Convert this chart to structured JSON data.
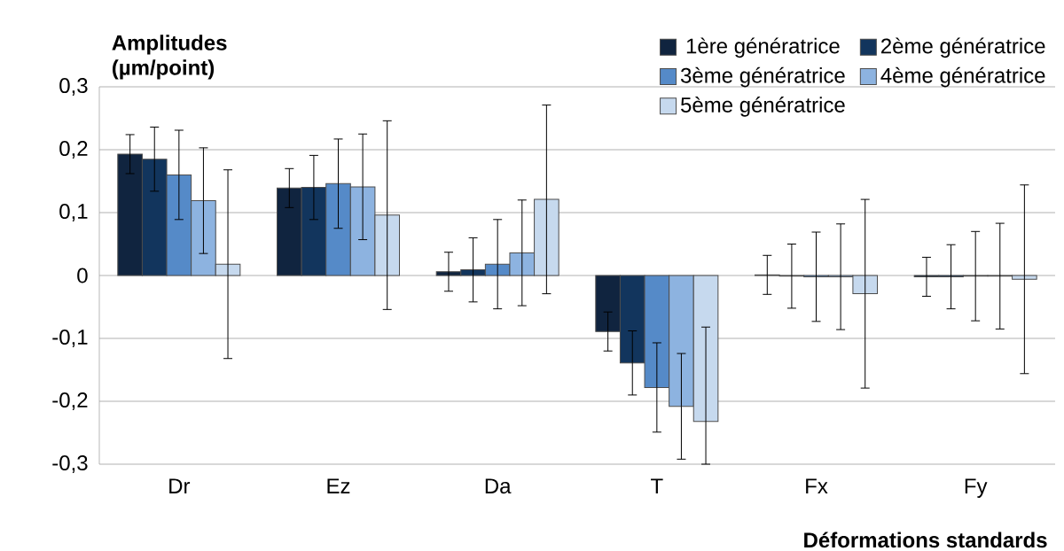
{
  "chart_data": {
    "type": "bar",
    "ylabel": "Amplitudes (µm/point)",
    "xlabel": "Déformations standards",
    "categories": [
      "Dr",
      "Ez",
      "Da",
      "T",
      "Fx",
      "Fy"
    ],
    "ylim": [
      -0.3,
      0.3
    ],
    "yticks": [
      {
        "value": -0.3,
        "label": "-0,3"
      },
      {
        "value": -0.2,
        "label": "-0,2"
      },
      {
        "value": -0.1,
        "label": "-0,1"
      },
      0,
      {
        "value": 0.1,
        "label": "0,1"
      },
      {
        "value": 0.2,
        "label": "0,2"
      },
      {
        "value": 0.3,
        "label": "0,3"
      }
    ],
    "grid": "y",
    "legend": "top right",
    "series": [
      {
        "name": "1ère génératrice",
        "color": "#10243f",
        "values": [
          0.193,
          0.139,
          0.006,
          -0.089,
          0.001,
          -0.002
        ],
        "errors": [
          0.031,
          0.031,
          0.031,
          0.031,
          0.031,
          0.031
        ]
      },
      {
        "name": "2ème génératrice",
        "color": "#12355d",
        "values": [
          0.185,
          0.14,
          0.009,
          -0.139,
          -0.001,
          -0.002
        ],
        "errors": [
          0.051,
          0.051,
          0.051,
          0.051,
          0.051,
          0.051
        ]
      },
      {
        "name": "3ème génératrice",
        "color": "#558ac8",
        "values": [
          0.16,
          0.146,
          0.018,
          -0.178,
          -0.002,
          -0.001
        ],
        "errors": [
          0.071,
          0.071,
          0.071,
          0.071,
          0.071,
          0.071
        ]
      },
      {
        "name": "4ème génératrice",
        "color": "#8db3e0",
        "values": [
          0.119,
          0.141,
          0.036,
          -0.208,
          -0.002,
          -0.001
        ],
        "errors": [
          0.084,
          0.084,
          0.084,
          0.084,
          0.084,
          0.084
        ]
      },
      {
        "name": "5ème génératrice",
        "color": "#c6d9ee",
        "values": [
          0.018,
          0.096,
          0.121,
          -0.232,
          -0.029,
          -0.006
        ],
        "errors": [
          0.15,
          0.15,
          0.15,
          [
            -0.3,
            -0.082
          ],
          0.15,
          0.15
        ]
      }
    ]
  }
}
